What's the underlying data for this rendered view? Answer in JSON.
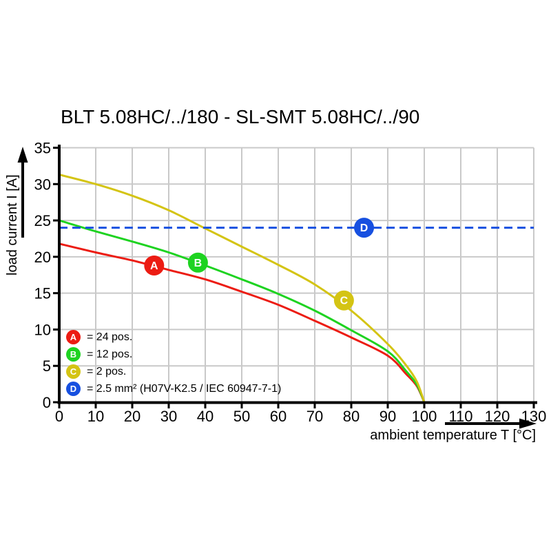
{
  "title": "BLT 5.08HC/../180 - SL-SMT 5.08HC/../90",
  "chart_data": {
    "type": "line",
    "title": "BLT 5.08HC/../180 - SL-SMT 5.08HC/../90",
    "xlabel": "ambient temperature T [°C]",
    "ylabel": "load current I [A]",
    "xlim": [
      0,
      130
    ],
    "ylim": [
      0,
      35
    ],
    "xticks": [
      0,
      10,
      20,
      30,
      40,
      50,
      60,
      70,
      80,
      90,
      100,
      110,
      120,
      130
    ],
    "yticks": [
      0,
      5,
      10,
      15,
      20,
      25,
      30,
      35
    ],
    "grid": true,
    "grid_color": "#c9c9c9",
    "axis_color": "#000000",
    "legend_position": "lower-left-inside",
    "series": [
      {
        "id": "A",
        "name": "24 pos.",
        "color": "#ec1c13",
        "style": "solid",
        "points": [
          [
            0,
            21.8
          ],
          [
            10,
            20.6
          ],
          [
            20,
            19.5
          ],
          [
            30,
            18.2
          ],
          [
            40,
            16.9
          ],
          [
            50,
            15.2
          ],
          [
            60,
            13.4
          ],
          [
            70,
            11.2
          ],
          [
            80,
            8.9
          ],
          [
            90,
            6.4
          ],
          [
            95,
            3.9
          ],
          [
            98,
            2.2
          ],
          [
            100,
            0
          ]
        ],
        "marker": {
          "label": "A",
          "x": 26,
          "y": 18.8
        }
      },
      {
        "id": "B",
        "name": "12 pos.",
        "color": "#1ed321",
        "style": "solid",
        "points": [
          [
            0,
            25
          ],
          [
            10,
            23.5
          ],
          [
            20,
            22.1
          ],
          [
            30,
            20.6
          ],
          [
            40,
            18.8
          ],
          [
            50,
            16.9
          ],
          [
            60,
            14.9
          ],
          [
            70,
            12.6
          ],
          [
            80,
            9.9
          ],
          [
            90,
            7
          ],
          [
            95,
            4.3
          ],
          [
            98,
            2.4
          ],
          [
            100,
            0
          ]
        ],
        "marker": {
          "label": "B",
          "x": 38,
          "y": 19.2
        }
      },
      {
        "id": "C",
        "name": "2 pos.",
        "color": "#d4c414",
        "style": "solid",
        "points": [
          [
            0,
            31.3
          ],
          [
            10,
            30
          ],
          [
            20,
            28.4
          ],
          [
            30,
            26.4
          ],
          [
            40,
            23.9
          ],
          [
            50,
            21.4
          ],
          [
            60,
            18.9
          ],
          [
            70,
            16.2
          ],
          [
            80,
            12.6
          ],
          [
            90,
            8
          ],
          [
            95,
            5.1
          ],
          [
            98,
            2.8
          ],
          [
            100,
            0
          ]
        ],
        "marker": {
          "label": "C",
          "x": 78,
          "y": 14
        }
      },
      {
        "id": "D",
        "name": "2.5 mm² (H07V-K2.5 / IEC 60947-7-1)",
        "color": "#1750e0",
        "style": "dashed",
        "points": [
          [
            0,
            24
          ],
          [
            130,
            24
          ]
        ],
        "marker": {
          "label": "D",
          "x": 83.5,
          "y": 24
        }
      }
    ],
    "legend": [
      {
        "label": "A",
        "text": "= 24 pos.",
        "color": "#ec1c13"
      },
      {
        "label": "B",
        "text": "= 12 pos.",
        "color": "#1ed321"
      },
      {
        "label": "C",
        "text": "= 2 pos.",
        "color": "#d4c414"
      },
      {
        "label": "D",
        "text": "= 2.5 mm² (H07V-K2.5 / IEC 60947-7-1)",
        "color": "#1750e0"
      }
    ]
  }
}
